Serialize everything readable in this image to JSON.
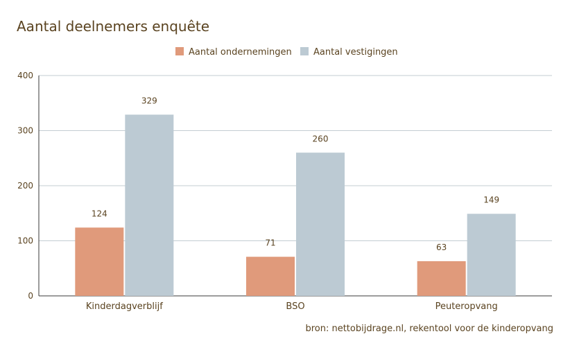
{
  "chart_data": {
    "type": "bar",
    "title": "Aantal deelnemers enquête",
    "categories": [
      "Kinderdagverblijf",
      "BSO",
      "Peuteropvang"
    ],
    "series": [
      {
        "name": "Aantal ondernemingen",
        "color": "#e09a7b",
        "values": [
          124,
          71,
          63
        ]
      },
      {
        "name": "Aantal vestigingen",
        "color": "#bccad3",
        "values": [
          329,
          260,
          149
        ]
      }
    ],
    "ylim": [
      0,
      400
    ],
    "yticks": [
      0,
      100,
      200,
      300,
      400
    ],
    "grid": true,
    "legend_position": "top-center",
    "source": "bron: nettobijdrage.nl, rekentool voor de kinderopvang"
  }
}
